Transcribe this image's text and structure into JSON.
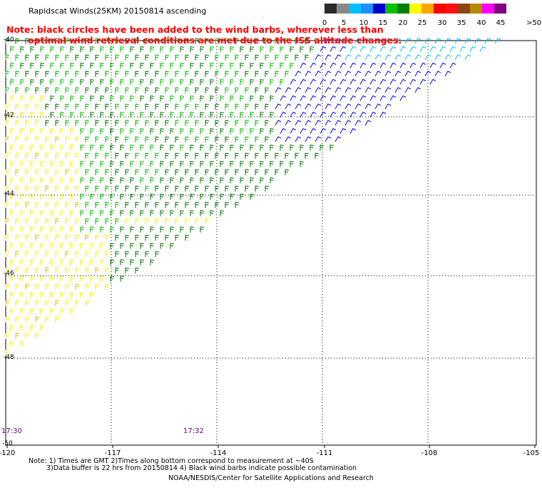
{
  "title": "Rapidscat Winds(25KM) 20150814 ascending",
  "note_line1": "Note: black circles have been added to the wind barbs, wherever less than",
  "note_line2": "optimal wind retrieval conditions are met due to the ISS altitude changes.",
  "legend": {
    "labels": [
      "0",
      "5",
      "10",
      "15",
      "20",
      "25",
      "30",
      "35",
      "40",
      "45",
      ">50 knots"
    ],
    "colors": [
      "#2a2a2a",
      "#888888",
      "#00bfff",
      "#1e90ff",
      "#0000cd",
      "#00c000",
      "#008000",
      "#ffff00",
      "#ffa500",
      "#ff0000",
      "#ff1010",
      "#8b4513",
      "#b8860b",
      "#ff00ff",
      "#800080"
    ]
  },
  "axes": {
    "y_labels": [
      "-40",
      "-42",
      "-44",
      "-46",
      "-48",
      "-50"
    ],
    "x_labels": [
      "-120",
      "-117",
      "-114",
      "-111",
      "-108",
      "-105"
    ]
  },
  "times": [
    "17:30",
    "17:32"
  ],
  "footnote_line1": "Note: 1) Times are GMT 2)Times along bottom correspond to measurement at ~40S",
  "footnote_line2": "3)Data buffer is 22 hrs from 20150814 4) Black wind barbs indicate possible contamination",
  "credit": "NOAA/NESDIS/Center for Satellite Applications and Research",
  "wind_colors": {
    "cyan": "#00bfff",
    "blue": "#0000ff",
    "green": "#00bb00",
    "dark_green": "#007700",
    "yellow": "#ffee00",
    "gold": "#e0c000"
  }
}
